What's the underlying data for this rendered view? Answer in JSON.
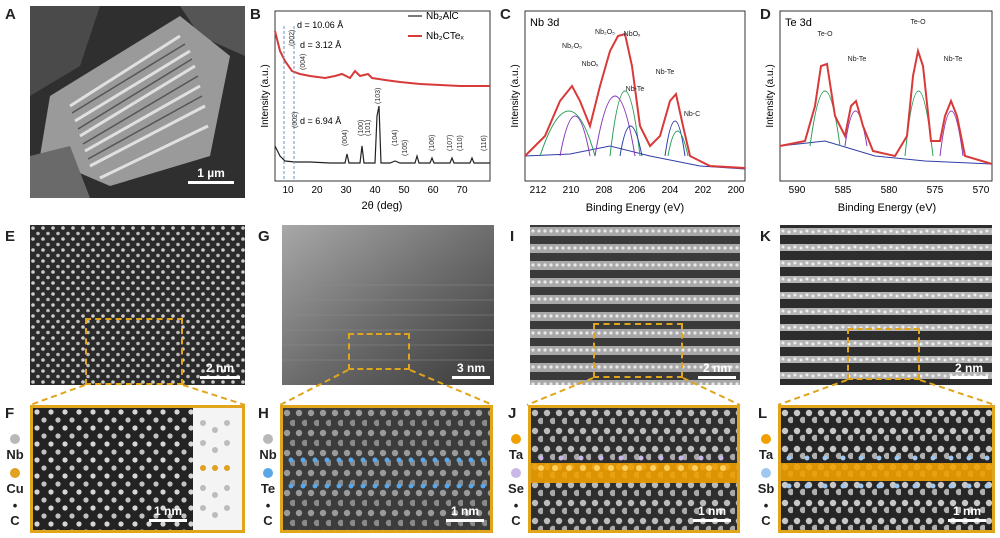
{
  "panels": {
    "A": {
      "label": "A",
      "scale": "1 µm"
    },
    "B": {
      "label": "B",
      "xlabel": "2θ (deg)",
      "ylabel": "Intensity (a.u.)",
      "legend": [
        "Nb₂AlC",
        "Nb₂CTeₓ"
      ],
      "annotations": [
        "d = 10.06 Å",
        "d = 3.12 Å",
        "d = 6.94 Å"
      ],
      "peaks": [
        "(002)",
        "(002)",
        "(004)",
        "(004)",
        "(100)",
        "(101)",
        "(103)",
        "(104)",
        "(105)",
        "(106)",
        "(107)",
        "(110)",
        "(116)"
      ],
      "xticks": [
        "10",
        "20",
        "30",
        "40",
        "50",
        "60",
        "70"
      ]
    },
    "C": {
      "label": "C",
      "title": "Nb 3d",
      "xlabel": "Binding Energy  (eV)",
      "ylabel": "Intensity (a.u.)",
      "xticks": [
        "212",
        "210",
        "208",
        "206",
        "204",
        "202",
        "200"
      ],
      "peaks": [
        "Nb₂O₅",
        "NbOₓ",
        "Nb-Te",
        "Nb-C"
      ]
    },
    "D": {
      "label": "D",
      "title": "Te 3d",
      "xlabel": "Binding Energy  (eV)",
      "ylabel": "Intensity (a.u.)",
      "xticks": [
        "590",
        "585",
        "580",
        "575",
        "570"
      ],
      "peaks": [
        "Te-O",
        "Nb-Te",
        "Te-O",
        "Nb-Te"
      ]
    },
    "E": {
      "label": "E",
      "scale": "2 nm"
    },
    "F": {
      "label": "F",
      "scale": "1 nm",
      "legend": [
        "Nb",
        "Cu",
        "C"
      ]
    },
    "G": {
      "label": "G",
      "scale": "3 nm"
    },
    "H": {
      "label": "H",
      "scale": "1 nm",
      "legend": [
        "Nb",
        "Te",
        "C"
      ]
    },
    "I": {
      "label": "I",
      "scale": "2 nm"
    },
    "J": {
      "label": "J",
      "scale": "1 nm",
      "legend": [
        "Ta",
        "Se",
        "C"
      ]
    },
    "K": {
      "label": "K",
      "scale": "2 nm"
    },
    "L": {
      "label": "L",
      "scale": "1 nm",
      "legend": [
        "Ta",
        "Sb",
        "C"
      ]
    }
  },
  "colors": {
    "gold": "#e1a51b",
    "xrd_red": "#d83a3a",
    "xrd_black": "#222222",
    "blue": "#5aa6e6",
    "orange": "#f0a000"
  }
}
